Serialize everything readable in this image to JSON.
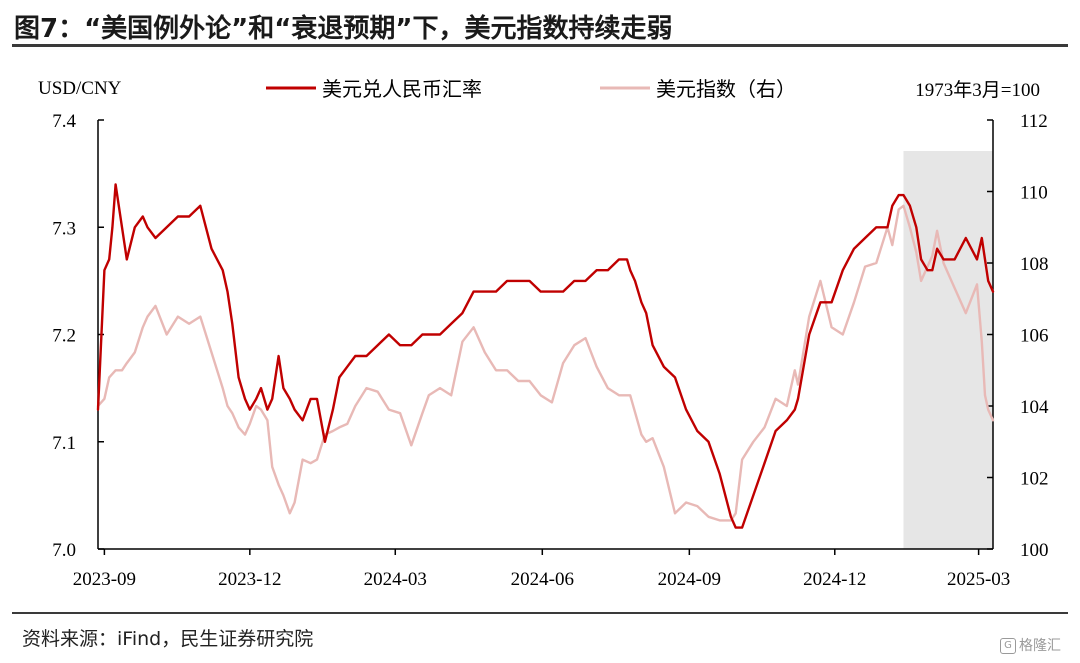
{
  "figure": {
    "title": "图7：“美国例外论”和“衰退预期”下，美元指数持续走弱",
    "source": "资料来源：iFind，民生证券研究院",
    "watermark": "格隆汇"
  },
  "chart_data": {
    "type": "line",
    "left_axis": {
      "label": "USD/CNY",
      "range": [
        7.0,
        7.4
      ],
      "ticks": [
        "7.0",
        "7.1",
        "7.2",
        "7.3",
        "7.4"
      ]
    },
    "right_axis": {
      "label": "1973年3月=100",
      "range": [
        100,
        112
      ],
      "ticks": [
        "100",
        "102",
        "104",
        "106",
        "108",
        "110",
        "112"
      ]
    },
    "x_axis": {
      "range": [
        "2023-08-28",
        "2025-03-10"
      ],
      "ticks": [
        "2023-09",
        "2023-12",
        "2024-03",
        "2024-06",
        "2024-09",
        "2024-12",
        "2025-03"
      ]
    },
    "grid": false,
    "legend_position": "top",
    "shaded_region": {
      "start": "2025-01-13",
      "end": "2025-03-10",
      "color": "#e6e6e6"
    },
    "series": [
      {
        "name": "美元兑人民币汇率",
        "axis": "left",
        "color": "#c00000",
        "x": [
          "2023-08-28",
          "2023-09-01",
          "2023-09-04",
          "2023-09-06",
          "2023-09-08",
          "2023-09-12",
          "2023-09-15",
          "2023-09-20",
          "2023-09-25",
          "2023-09-28",
          "2023-10-03",
          "2023-10-10",
          "2023-10-17",
          "2023-10-24",
          "2023-10-31",
          "2023-11-07",
          "2023-11-14",
          "2023-11-17",
          "2023-11-20",
          "2023-11-24",
          "2023-11-28",
          "2023-12-01",
          "2023-12-05",
          "2023-12-08",
          "2023-12-12",
          "2023-12-15",
          "2023-12-19",
          "2023-12-22",
          "2023-12-26",
          "2023-12-29",
          "2024-01-03",
          "2024-01-08",
          "2024-01-12",
          "2024-01-17",
          "2024-01-22",
          "2024-01-26",
          "2024-01-31",
          "2024-02-05",
          "2024-02-12",
          "2024-02-19",
          "2024-02-26",
          "2024-03-04",
          "2024-03-11",
          "2024-03-18",
          "2024-03-22",
          "2024-03-29",
          "2024-04-05",
          "2024-04-12",
          "2024-04-19",
          "2024-04-26",
          "2024-05-03",
          "2024-05-10",
          "2024-05-17",
          "2024-05-24",
          "2024-05-31",
          "2024-06-07",
          "2024-06-14",
          "2024-06-21",
          "2024-06-28",
          "2024-07-05",
          "2024-07-12",
          "2024-07-19",
          "2024-07-24",
          "2024-07-26",
          "2024-07-29",
          "2024-08-02",
          "2024-08-05",
          "2024-08-09",
          "2024-08-16",
          "2024-08-23",
          "2024-08-30",
          "2024-09-06",
          "2024-09-13",
          "2024-09-20",
          "2024-09-27",
          "2024-09-30",
          "2024-10-04",
          "2024-10-11",
          "2024-10-18",
          "2024-10-25",
          "2024-11-01",
          "2024-11-06",
          "2024-11-08",
          "2024-11-15",
          "2024-11-22",
          "2024-11-29",
          "2024-12-06",
          "2024-12-13",
          "2024-12-20",
          "2024-12-27",
          "2025-01-03",
          "2025-01-06",
          "2025-01-10",
          "2025-01-13",
          "2025-01-17",
          "2025-01-21",
          "2025-01-24",
          "2025-01-28",
          "2025-01-31",
          "2025-02-03",
          "2025-02-07",
          "2025-02-14",
          "2025-02-21",
          "2025-02-28",
          "2025-03-03",
          "2025-03-07",
          "2025-03-10"
        ],
        "values": [
          7.13,
          7.26,
          7.27,
          7.3,
          7.34,
          7.3,
          7.27,
          7.3,
          7.31,
          7.3,
          7.29,
          7.3,
          7.31,
          7.31,
          7.32,
          7.28,
          7.26,
          7.24,
          7.21,
          7.16,
          7.14,
          7.13,
          7.14,
          7.15,
          7.13,
          7.14,
          7.18,
          7.15,
          7.14,
          7.13,
          7.12,
          7.14,
          7.14,
          7.1,
          7.13,
          7.16,
          7.17,
          7.18,
          7.18,
          7.19,
          7.2,
          7.19,
          7.19,
          7.2,
          7.2,
          7.2,
          7.21,
          7.22,
          7.24,
          7.24,
          7.24,
          7.25,
          7.25,
          7.25,
          7.24,
          7.24,
          7.24,
          7.25,
          7.25,
          7.26,
          7.26,
          7.27,
          7.27,
          7.26,
          7.25,
          7.23,
          7.22,
          7.19,
          7.17,
          7.16,
          7.13,
          7.11,
          7.1,
          7.07,
          7.03,
          7.02,
          7.02,
          7.05,
          7.08,
          7.11,
          7.12,
          7.13,
          7.14,
          7.2,
          7.23,
          7.23,
          7.26,
          7.28,
          7.29,
          7.3,
          7.3,
          7.32,
          7.33,
          7.33,
          7.32,
          7.3,
          7.27,
          7.26,
          7.26,
          7.28,
          7.27,
          7.27,
          7.29,
          7.27,
          7.29,
          7.25,
          7.24
        ]
      },
      {
        "name": "美元指数（右）",
        "axis": "right",
        "color": "#e8b9b6",
        "x": [
          "2023-08-28",
          "2023-09-01",
          "2023-09-04",
          "2023-09-08",
          "2023-09-12",
          "2023-09-15",
          "2023-09-20",
          "2023-09-25",
          "2023-09-28",
          "2023-10-03",
          "2023-10-10",
          "2023-10-17",
          "2023-10-24",
          "2023-10-31",
          "2023-11-07",
          "2023-11-14",
          "2023-11-17",
          "2023-11-20",
          "2023-11-24",
          "2023-11-28",
          "2023-12-01",
          "2023-12-05",
          "2023-12-08",
          "2023-12-12",
          "2023-12-15",
          "2023-12-19",
          "2023-12-22",
          "2023-12-26",
          "2023-12-29",
          "2024-01-03",
          "2024-01-08",
          "2024-01-12",
          "2024-01-17",
          "2024-01-22",
          "2024-01-26",
          "2024-01-31",
          "2024-02-05",
          "2024-02-12",
          "2024-02-19",
          "2024-02-26",
          "2024-03-04",
          "2024-03-11",
          "2024-03-18",
          "2024-03-22",
          "2024-03-29",
          "2024-04-05",
          "2024-04-12",
          "2024-04-19",
          "2024-04-26",
          "2024-05-03",
          "2024-05-10",
          "2024-05-17",
          "2024-05-24",
          "2024-05-31",
          "2024-06-07",
          "2024-06-14",
          "2024-06-21",
          "2024-06-28",
          "2024-07-05",
          "2024-07-12",
          "2024-07-19",
          "2024-07-26",
          "2024-08-02",
          "2024-08-05",
          "2024-08-09",
          "2024-08-16",
          "2024-08-23",
          "2024-08-30",
          "2024-09-06",
          "2024-09-13",
          "2024-09-20",
          "2024-09-27",
          "2024-09-30",
          "2024-10-04",
          "2024-10-11",
          "2024-10-18",
          "2024-10-25",
          "2024-11-01",
          "2024-11-06",
          "2024-11-08",
          "2024-11-15",
          "2024-11-22",
          "2024-11-29",
          "2024-12-06",
          "2024-12-13",
          "2024-12-20",
          "2024-12-27",
          "2025-01-03",
          "2025-01-06",
          "2025-01-10",
          "2025-01-13",
          "2025-01-17",
          "2025-01-21",
          "2025-01-24",
          "2025-01-28",
          "2025-01-31",
          "2025-02-03",
          "2025-02-07",
          "2025-02-14",
          "2025-02-21",
          "2025-02-28",
          "2025-03-03",
          "2025-03-05",
          "2025-03-07",
          "2025-03-10"
        ],
        "values": [
          104.0,
          104.2,
          104.8,
          105.0,
          105.0,
          105.2,
          105.5,
          106.2,
          106.5,
          106.8,
          106.0,
          106.5,
          106.3,
          106.5,
          105.5,
          104.5,
          104.0,
          103.8,
          103.4,
          103.2,
          103.5,
          104.0,
          103.9,
          103.6,
          102.3,
          101.8,
          101.5,
          101.0,
          101.3,
          102.5,
          102.4,
          102.5,
          103.2,
          103.3,
          103.4,
          103.5,
          104.0,
          104.5,
          104.4,
          103.9,
          103.8,
          102.9,
          103.8,
          104.3,
          104.5,
          104.3,
          105.8,
          106.2,
          105.5,
          105.0,
          105.0,
          104.7,
          104.7,
          104.3,
          104.1,
          105.2,
          105.7,
          105.9,
          105.1,
          104.5,
          104.3,
          104.3,
          103.2,
          103.0,
          103.1,
          102.3,
          101.0,
          101.3,
          101.2,
          100.9,
          100.8,
          100.8,
          101.0,
          102.5,
          103.0,
          103.4,
          104.2,
          104.0,
          105.0,
          104.6,
          106.5,
          107.5,
          106.2,
          106.0,
          106.9,
          107.9,
          108.0,
          109.0,
          108.5,
          109.5,
          109.6,
          109.0,
          108.3,
          107.5,
          107.9,
          108.2,
          108.9,
          108.0,
          107.3,
          106.6,
          107.4,
          105.8,
          104.3,
          103.9,
          103.6
        ]
      }
    ]
  }
}
